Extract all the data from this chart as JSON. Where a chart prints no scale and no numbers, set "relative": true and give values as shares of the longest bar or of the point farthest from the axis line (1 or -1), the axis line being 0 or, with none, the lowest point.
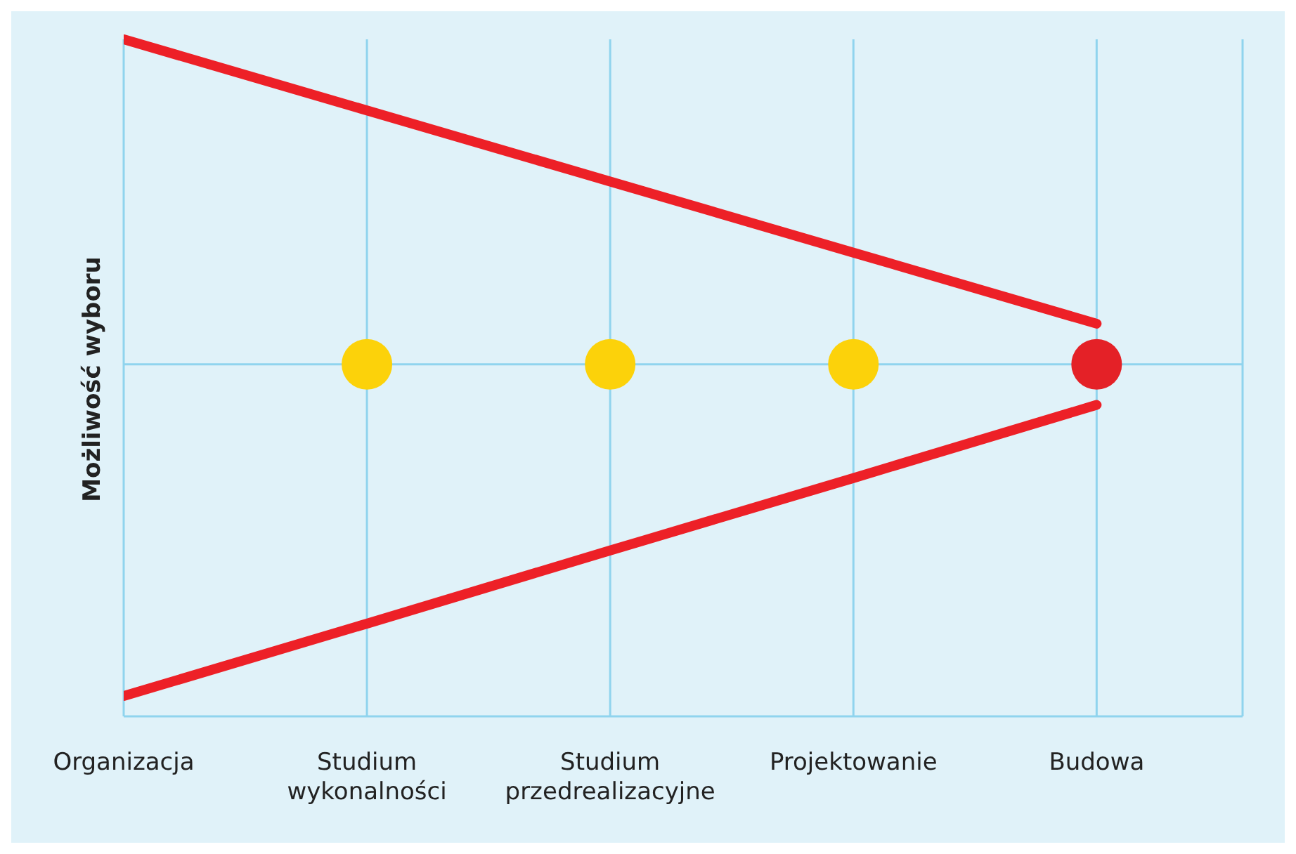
{
  "chart_data": {
    "type": "line",
    "relative": true,
    "ylabel": "Możliwość wyboru",
    "categories": [
      "Organizacja",
      "Studium wykonalności",
      "Studium przedrealizacyjne",
      "Projektowanie",
      "Budowa"
    ],
    "series": [
      {
        "color": "#ed2027",
        "values": [
          1,
          0.895,
          0.79,
          0.685,
          0.58
        ]
      },
      {
        "color": "#ed2027",
        "values": [
          0.03,
          0.137,
          0.245,
          0.352,
          0.46
        ]
      },
      {
        "type": "scatter",
        "colors": [
          null,
          "#fcd20a",
          "#fcd20a",
          "#fcd20a",
          "#e42127"
        ],
        "values": [
          null,
          0.52,
          0.52,
          0.52,
          0.52
        ]
      }
    ],
    "ref_lines": [
      {
        "axis": "y",
        "value": 0.52,
        "color": "#90d4ee"
      }
    ],
    "grid": "x",
    "legend": false
  }
}
